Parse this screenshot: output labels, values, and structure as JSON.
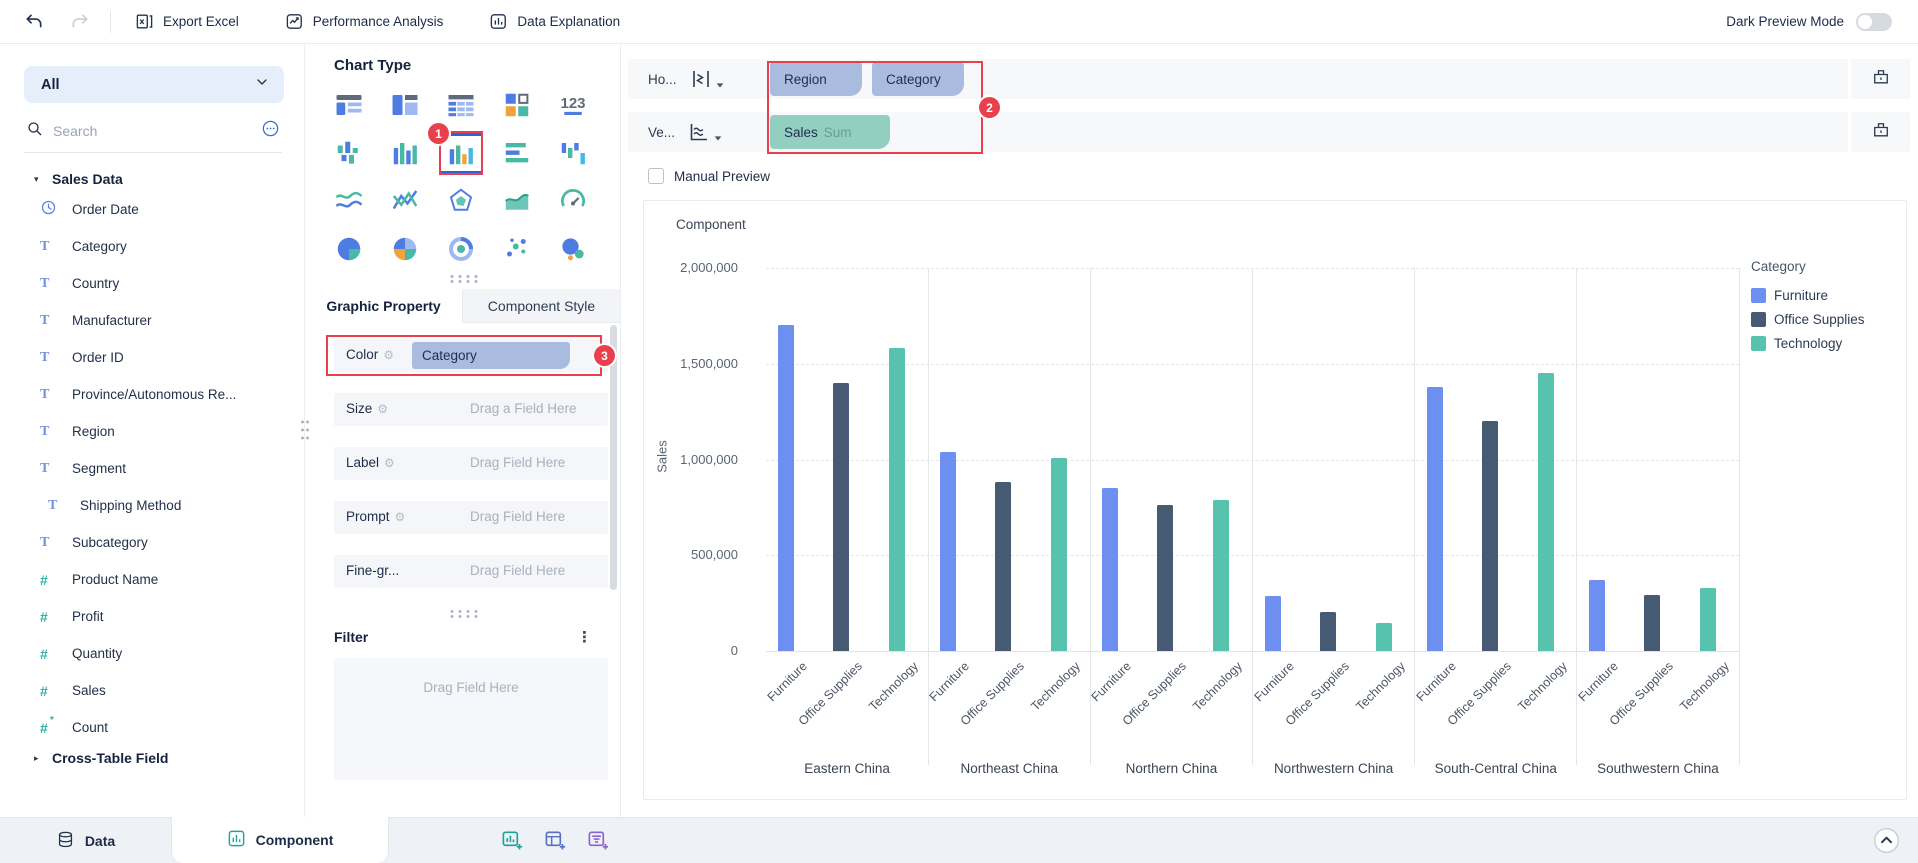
{
  "toolbar": {
    "export_label": "Export Excel",
    "performance_label": "Performance Analysis",
    "explanation_label": "Data Explanation",
    "dark_mode_label": "Dark Preview Mode",
    "dark_mode_on": false
  },
  "sidebar": {
    "all_label": "All",
    "search_placeholder": "Search",
    "groups": [
      {
        "label": "Sales Data",
        "expanded": true,
        "fields": [
          {
            "icon": "date-icon",
            "label": "Order Date"
          },
          {
            "icon": "text-icon",
            "label": "Category"
          },
          {
            "icon": "text-icon",
            "label": "Country"
          },
          {
            "icon": "text-icon",
            "label": "Manufacturer"
          },
          {
            "icon": "text-icon",
            "label": "Order ID"
          },
          {
            "icon": "text-icon",
            "label": "Province/Autonomous Re..."
          },
          {
            "icon": "text-icon",
            "label": "Region"
          },
          {
            "icon": "text-icon",
            "label": "Segment"
          },
          {
            "icon": "text-icon",
            "label": "Shipping Method",
            "indent": true
          },
          {
            "icon": "text-icon",
            "label": "Subcategory"
          },
          {
            "icon": "number-icon",
            "label": "Product Name"
          },
          {
            "icon": "number-icon",
            "label": "Profit"
          },
          {
            "icon": "number-icon",
            "label": "Quantity"
          },
          {
            "icon": "number-icon",
            "label": "Sales"
          },
          {
            "icon": "count-icon",
            "label": "Count"
          }
        ]
      },
      {
        "label": "Cross-Table Field",
        "expanded": false,
        "fields": []
      }
    ]
  },
  "chart_type_panel": {
    "title": "Chart Type",
    "selected_index": 7,
    "selected_badge": "1",
    "icons": [
      "grouped-table",
      "detail-table",
      "cross-table",
      "indicator-card",
      "kpi-card",
      "bidirectional-bar",
      "column-chart",
      "multi-series-column",
      "horizontal-bar",
      "waterfall",
      "line",
      "multi-line",
      "radar",
      "area",
      "gauge",
      "pie",
      "multi-pie",
      "donut",
      "scatter",
      "bubble"
    ]
  },
  "property_panel": {
    "tabs": [
      "Graphic Property",
      "Component Style"
    ],
    "active_tab": 0,
    "rows": [
      {
        "label": "Color",
        "gear": true,
        "pill": "Category",
        "badge": "3"
      },
      {
        "label": "Size",
        "gear": true,
        "placeholder": "Drag a Field Here"
      },
      {
        "label": "Label",
        "gear": true,
        "placeholder": "Drag Field Here"
      },
      {
        "label": "Prompt",
        "gear": true,
        "placeholder": "Drag Field Here"
      },
      {
        "label": "Fine-gr...",
        "gear": false,
        "placeholder": "Drag Field Here"
      }
    ]
  },
  "filter_panel": {
    "title": "Filter",
    "placeholder": "Drag Field Here"
  },
  "shelves": {
    "horizontal": {
      "label": "Ho...",
      "pills": [
        {
          "text": "Region"
        },
        {
          "text": "Category"
        }
      ]
    },
    "vertical": {
      "label": "Ve...",
      "pills": [
        {
          "text": "Sales",
          "agg": "Sum"
        }
      ]
    },
    "badge": "2"
  },
  "preview": {
    "manual_label": "Manual Preview",
    "checked": false
  },
  "chart_data": {
    "type": "bar",
    "title": "Component",
    "ylabel": "Sales",
    "legend_title": "Category",
    "legend_position": "right",
    "grid": true,
    "ylim": [
      0,
      2000000
    ],
    "yticks": [
      0,
      500000,
      1000000,
      1500000,
      2000000
    ],
    "ytick_labels": [
      "0",
      "500,000",
      "1,000,000",
      "1,500,000",
      "2,000,000"
    ],
    "categories": [
      "Eastern China",
      "Northeast China",
      "Northern China",
      "Northwestern China",
      "South-Central China",
      "Southwestern China"
    ],
    "series": [
      {
        "name": "Furniture",
        "color": "#6C8FF0",
        "values": [
          1700000,
          1040000,
          850000,
          285000,
          1380000,
          370000
        ]
      },
      {
        "name": "Office Supplies",
        "color": "#475A74",
        "values": [
          1400000,
          880000,
          760000,
          205000,
          1200000,
          290000
        ]
      },
      {
        "name": "Technology",
        "color": "#57C2AE",
        "values": [
          1580000,
          1010000,
          790000,
          145000,
          1450000,
          330000
        ]
      }
    ]
  },
  "bottom_bar": {
    "tabs": [
      {
        "label": "Data",
        "icon": "database-icon",
        "active": false
      },
      {
        "label": "Component",
        "icon": "component-chart-icon",
        "active": true
      }
    ],
    "add_buttons": [
      {
        "name": "add-chart-button",
        "color": "#1BA39A"
      },
      {
        "name": "add-table-button",
        "color": "#5A6FC0"
      },
      {
        "name": "add-filter-button",
        "color": "#8A63D2"
      }
    ]
  },
  "colors": {
    "annotation_red": "#E8414D",
    "dimension_pill": "#A9BCE0",
    "measure_pill": "#92CFC0",
    "selected_icon_border": "#2E62D9"
  }
}
